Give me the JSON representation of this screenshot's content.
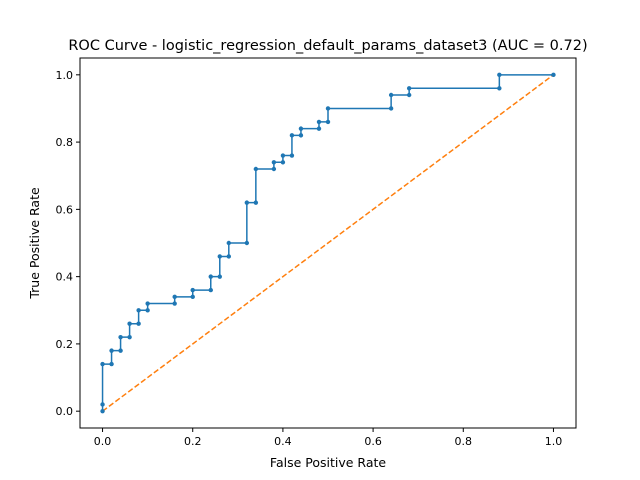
{
  "chart_data": {
    "type": "line",
    "title": "ROC Curve - logistic_regression_default_params_dataset3 (AUC = 0.72)",
    "xlabel": "False Positive Rate",
    "ylabel": "True Positive Rate",
    "xlim": [
      -0.05,
      1.05
    ],
    "ylim": [
      -0.05,
      1.05
    ],
    "xticks": [
      0.0,
      0.2,
      0.4,
      0.6,
      0.8,
      1.0
    ],
    "xtick_labels": [
      "0.0",
      "0.2",
      "0.4",
      "0.6",
      "0.8",
      "1.0"
    ],
    "yticks": [
      0.0,
      0.2,
      0.4,
      0.6,
      0.8,
      1.0
    ],
    "ytick_labels": [
      "0.0",
      "0.2",
      "0.4",
      "0.6",
      "0.8",
      "1.0"
    ],
    "grid": false,
    "series": [
      {
        "color": "#1f77b4",
        "style": "solid",
        "marker": "dot",
        "x": [
          0.0,
          0.0,
          0.0,
          0.02,
          0.02,
          0.04,
          0.04,
          0.06,
          0.06,
          0.08,
          0.08,
          0.1,
          0.1,
          0.16,
          0.16,
          0.2,
          0.2,
          0.24,
          0.24,
          0.26,
          0.26,
          0.28,
          0.28,
          0.32,
          0.32,
          0.34,
          0.34,
          0.38,
          0.38,
          0.4,
          0.4,
          0.42,
          0.42,
          0.44,
          0.44,
          0.48,
          0.48,
          0.5,
          0.5,
          0.64,
          0.64,
          0.68,
          0.68,
          0.88,
          0.88,
          1.0
        ],
        "y": [
          0.0,
          0.02,
          0.14,
          0.14,
          0.18,
          0.18,
          0.22,
          0.22,
          0.26,
          0.26,
          0.3,
          0.3,
          0.32,
          0.32,
          0.34,
          0.34,
          0.36,
          0.36,
          0.4,
          0.4,
          0.46,
          0.46,
          0.5,
          0.5,
          0.62,
          0.62,
          0.72,
          0.72,
          0.74,
          0.74,
          0.76,
          0.76,
          0.82,
          0.82,
          0.84,
          0.84,
          0.86,
          0.86,
          0.9,
          0.9,
          0.94,
          0.94,
          0.96,
          0.96,
          1.0,
          1.0
        ]
      },
      {
        "color": "#ff7f0e",
        "style": "dashed",
        "marker": "none",
        "x": [
          0.0,
          1.0
        ],
        "y": [
          0.0,
          1.0
        ]
      }
    ]
  }
}
